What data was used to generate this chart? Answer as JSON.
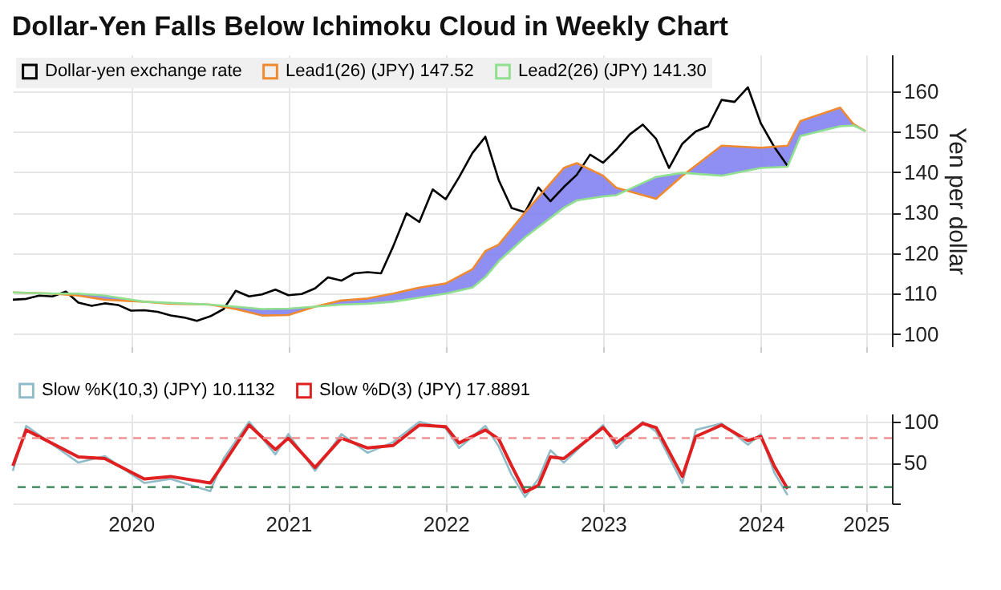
{
  "chart_data": [
    {
      "type": "line",
      "title": "Dollar-Yen Falls Below Ichimoku Cloud in Weekly Chart",
      "ylabel": "Yen per dollar",
      "xlim": [
        "2019-10",
        "2025-05"
      ],
      "ylim": [
        97,
        169
      ],
      "xticks": [
        {
          "value": "2020-07",
          "label": null
        },
        {
          "value": "2021-07",
          "label": null
        },
        {
          "value": "2022-07",
          "label": null
        },
        {
          "value": "2023-07",
          "label": null
        },
        {
          "value": "2024-07",
          "label": null
        },
        {
          "value": "2025-03",
          "label": null
        }
      ],
      "yticks": [
        100,
        110,
        120,
        130,
        140,
        150,
        160
      ],
      "grid": true,
      "legend": "top left",
      "tick_labels": "y",
      "series": [
        {
          "name": "Dollar-yen exchange rate",
          "color": "#000000",
          "x": [
            "2019-10",
            "2019-11",
            "2019-12",
            "2020-01",
            "2020-02",
            "2020-03",
            "2020-04",
            "2020-05",
            "2020-06",
            "2020-07",
            "2020-08",
            "2020-09",
            "2020-10",
            "2020-11",
            "2020-12",
            "2021-01",
            "2021-02",
            "2021-03",
            "2021-04",
            "2021-05",
            "2021-06",
            "2021-07",
            "2021-08",
            "2021-09",
            "2021-10",
            "2021-11",
            "2021-12",
            "2022-01",
            "2022-02",
            "2022-03",
            "2022-04",
            "2022-05",
            "2022-06",
            "2022-07",
            "2022-08",
            "2022-09",
            "2022-10",
            "2022-11",
            "2022-12",
            "2023-01",
            "2023-02",
            "2023-03",
            "2023-04",
            "2023-05",
            "2023-06",
            "2023-07",
            "2023-08",
            "2023-09",
            "2023-10",
            "2023-11",
            "2023-12",
            "2024-01",
            "2024-02",
            "2024-03",
            "2024-04",
            "2024-05",
            "2024-06",
            "2024-07",
            "2024-08",
            "2024-09"
          ],
          "values": [
            108.5,
            108.7,
            109.5,
            109.3,
            110.5,
            107.8,
            107.0,
            107.6,
            107.2,
            105.8,
            105.9,
            105.5,
            104.6,
            104.1,
            103.3,
            104.4,
            106.2,
            110.7,
            109.3,
            109.8,
            111.0,
            109.6,
            109.9,
            111.3,
            114.0,
            113.2,
            115.0,
            115.3,
            115.0,
            121.6,
            129.8,
            127.7,
            135.7,
            133.3,
            138.7,
            144.7,
            148.7,
            138.0,
            131.1,
            130.1,
            136.2,
            132.8,
            136.3,
            139.3,
            144.3,
            142.3,
            145.5,
            149.3,
            151.7,
            148.2,
            141.0,
            147.0,
            150.0,
            151.3,
            157.8,
            157.3,
            160.9,
            152.0,
            146.2,
            141.5
          ]
        },
        {
          "name": "Lead1(26) (JPY) 147.52",
          "color": "#f08a30",
          "x": [
            "2019-10",
            "2020-01",
            "2020-03",
            "2020-05",
            "2020-08",
            "2020-10",
            "2021-01",
            "2021-03",
            "2021-05",
            "2021-07",
            "2021-09",
            "2021-11",
            "2022-01",
            "2022-03",
            "2022-05",
            "2022-07",
            "2022-09",
            "2022-10",
            "2022-11",
            "2023-01",
            "2023-04",
            "2023-05",
            "2023-07",
            "2023-08",
            "2023-11",
            "2024-01",
            "2024-04",
            "2024-07",
            "2024-09",
            "2024-10",
            "2025-01",
            "2025-02",
            "2025-03"
          ],
          "values": [
            110.3,
            110,
            109.5,
            108.5,
            108,
            107.5,
            107.3,
            106.2,
            104.6,
            104.7,
            106.8,
            108.3,
            108.8,
            110,
            111.5,
            112.5,
            116,
            120.5,
            122.1,
            130,
            141,
            142.2,
            139.1,
            136.1,
            133.4,
            139.1,
            146.5,
            146,
            146.5,
            152.6,
            155.9,
            151.8,
            150.1
          ],
          "upper": [
            110.3,
            110,
            109.5,
            108.5,
            108,
            107.5,
            107.3,
            106.2,
            104.6,
            104.7,
            106.8,
            108.3,
            108.8,
            110,
            111.5,
            112.5,
            116,
            120.5,
            122.1,
            130,
            141,
            142.2,
            139.1,
            136.1,
            133.4,
            139.1,
            146.5,
            146,
            146.5,
            152.6,
            155.9,
            151.8,
            150.1
          ],
          "lower": [
            110.3,
            110,
            110,
            109.5,
            108,
            107.7,
            107.3,
            106.8,
            106.2,
            106.3,
            106.8,
            107.3,
            107.5,
            108,
            109,
            110,
            111.5,
            114.1,
            118,
            123.9,
            131.2,
            133,
            134,
            134.3,
            138.8,
            139.8,
            139.1,
            141,
            141.3,
            148.9,
            151.3,
            151.5,
            150.1
          ]
        },
        {
          "name": "Lead2(26) (JPY) 141.30",
          "color": "#90e090",
          "x": [
            "2019-10",
            "2020-01",
            "2020-03",
            "2020-05",
            "2020-08",
            "2020-10",
            "2021-01",
            "2021-03",
            "2021-05",
            "2021-07",
            "2021-09",
            "2021-11",
            "2022-01",
            "2022-03",
            "2022-05",
            "2022-07",
            "2022-09",
            "2022-10",
            "2022-11",
            "2023-01",
            "2023-04",
            "2023-05",
            "2023-07",
            "2023-08",
            "2023-11",
            "2024-01",
            "2024-04",
            "2024-07",
            "2024-09",
            "2024-10",
            "2025-01",
            "2025-02",
            "2025-03"
          ],
          "values": [
            110.3,
            110,
            110,
            109.5,
            108,
            107.7,
            107.3,
            106.8,
            106.2,
            106.3,
            106.8,
            107.3,
            107.5,
            108,
            109,
            110,
            111.5,
            114.1,
            118,
            123.9,
            131.2,
            133,
            134,
            134.3,
            138.8,
            139.8,
            139.1,
            141,
            141.3,
            148.9,
            151.3,
            151.5,
            150.1
          ]
        }
      ]
    },
    {
      "type": "line",
      "xlim": [
        "2019-10",
        "2025-05"
      ],
      "ylim": [
        0,
        110
      ],
      "xticks": [
        {
          "value": "2020-07",
          "label": "2020"
        },
        {
          "value": "2021-07",
          "label": "2021"
        },
        {
          "value": "2022-07",
          "label": "2022"
        },
        {
          "value": "2023-07",
          "label": "2023"
        },
        {
          "value": "2024-07",
          "label": "2024"
        },
        {
          "value": "2025-03",
          "label": "2025"
        }
      ],
      "yticks": [
        {
          "value": 0,
          "label": null
        },
        50,
        100
      ],
      "grid": true,
      "legend": "top",
      "x": [
        "2019-10",
        "2019-11",
        "2020-03",
        "2020-05",
        "2020-08",
        "2020-10",
        "2021-01",
        "2021-02",
        "2021-04",
        "2021-06",
        "2021-07",
        "2021-09",
        "2021-11",
        "2022-01",
        "2022-03",
        "2022-05",
        "2022-07",
        "2022-08",
        "2022-10",
        "2022-11",
        "2022-12",
        "2023-01",
        "2023-02",
        "2023-03",
        "2023-04",
        "2023-07",
        "2023-08",
        "2023-10",
        "2023-11",
        "2024-01",
        "2024-02",
        "2024-04",
        "2024-06",
        "2024-07",
        "2024-08",
        "2024-09"
      ],
      "series": [
        {
          "name": "Slow %K(10,3) (JPY) 10.1132",
          "color": "#8fbcc8",
          "values": [
            40,
            95,
            50,
            58,
            25,
            30,
            15,
            55,
            100,
            60,
            85,
            40,
            85,
            62,
            75,
            100,
            92,
            68,
            95,
            70,
            35,
            8,
            30,
            65,
            50,
            96,
            68,
            100,
            88,
            25,
            90,
            98,
            72,
            85,
            38,
            10.1
          ]
        },
        {
          "name": "Slow %D(3) (JPY) 17.8891",
          "color": "#e02020",
          "values": [
            46,
            90,
            57,
            55,
            30,
            33,
            25,
            49,
            96,
            66,
            80,
            44,
            80,
            68,
            71,
            96,
            94,
            74,
            90,
            79,
            46,
            14,
            22,
            57,
            55,
            93,
            74,
            98,
            93,
            33,
            82,
            96,
            77,
            82,
            46,
            17.9
          ]
        }
      ],
      "ref_lines": [
        {
          "axis": "y",
          "value": 80,
          "color": "#f09090",
          "line_style": "dashed"
        },
        {
          "axis": "y",
          "value": 20,
          "color": "#308050",
          "line_style": "dashed"
        }
      ]
    }
  ]
}
